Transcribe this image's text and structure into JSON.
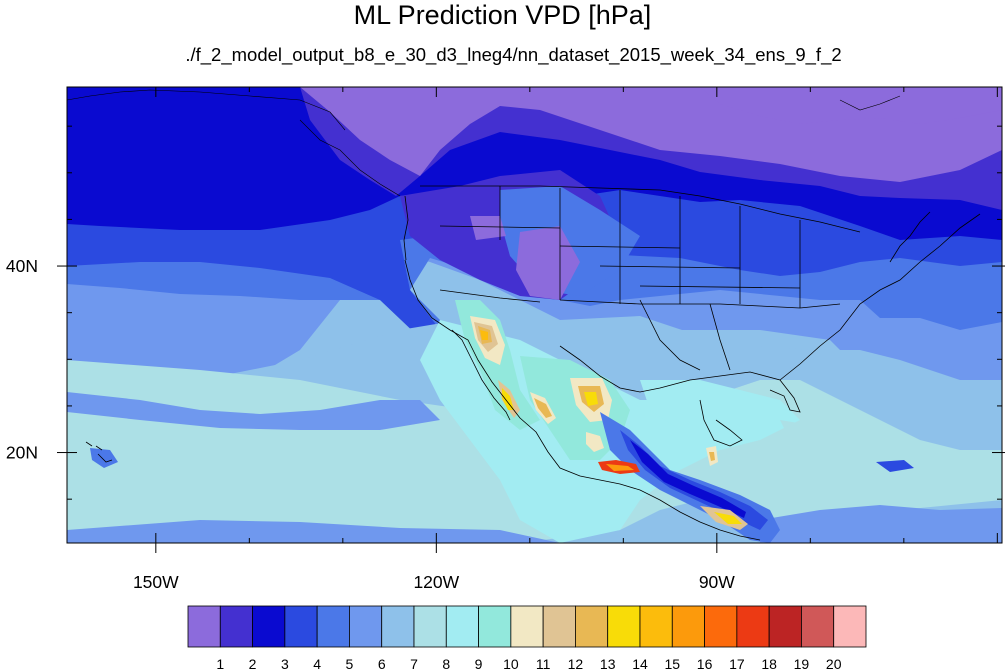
{
  "title": "ML Prediction VPD [hPa]",
  "subtitle": "./f_2_model_output_b8_e_30_d3_lneg4/nn_dataset_2015_week_34_ens_9_f_2",
  "map": {
    "lon_ticks": [
      {
        "value": -150,
        "label": "150W"
      },
      {
        "value": -120,
        "label": "120W"
      },
      {
        "value": -90,
        "label": "90W"
      }
    ],
    "lat_ticks": [
      {
        "value": 40,
        "label": "40N"
      },
      {
        "value": 20,
        "label": "20N"
      }
    ],
    "colors": {
      "ocean_light": "#8ec1ea",
      "land_outline": "#000000"
    }
  },
  "colorbar": {
    "labels": [
      "1",
      "2",
      "3",
      "4",
      "5",
      "6",
      "7",
      "8",
      "9",
      "10",
      "11",
      "12",
      "13",
      "14",
      "15",
      "16",
      "17",
      "18",
      "19",
      "20"
    ],
    "colors": [
      "#8c6bdc",
      "#4430d0",
      "#0a0ad0",
      "#2b4ae0",
      "#4b78e8",
      "#6f98ee",
      "#8ec1ea",
      "#ace0e6",
      "#a2ecf2",
      "#92e8dc",
      "#f2e8c4",
      "#e0c494",
      "#e8b854",
      "#f8dc08",
      "#fcbc0c",
      "#fc9a0c",
      "#fc6a0c",
      "#ec3a14",
      "#bc2424",
      "#d05858",
      "#fcb8b8"
    ]
  }
}
